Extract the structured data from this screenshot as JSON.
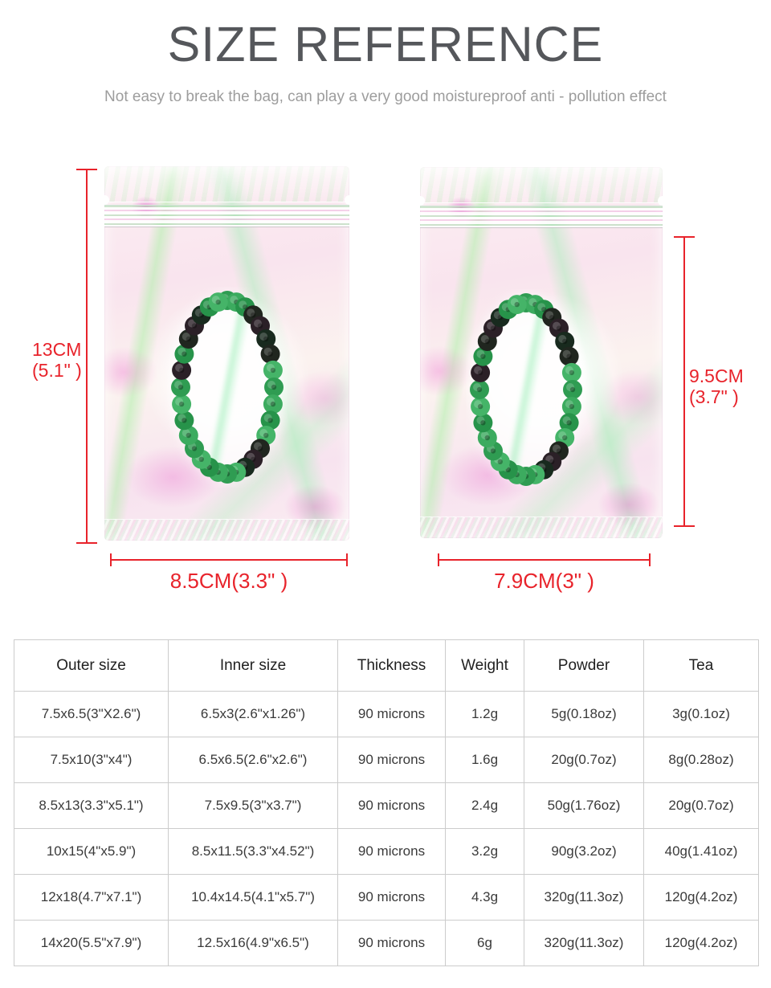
{
  "header": {
    "title": "SIZE REFERENCE",
    "subtitle": "Not easy to break the bag, can play a very good moistureproof anti - pollution effect"
  },
  "measurements": {
    "left_bag": {
      "height": "13CM",
      "height_inch": "(5.1\" )",
      "width": "8.5CM(3.3\" )"
    },
    "right_bag": {
      "height": "9.5CM",
      "height_inch": "(3.7\" )",
      "width": "7.9CM(3\" )"
    }
  },
  "table": {
    "columns": [
      "Outer size",
      "Inner size",
      "Thickness",
      "Weight",
      "Powder",
      "Tea"
    ],
    "rows": [
      [
        "7.5x6.5(3\"X2.6\")",
        "6.5x3(2.6\"x1.26\")",
        "90 microns",
        "1.2g",
        "5g(0.18oz)",
        "3g(0.1oz)"
      ],
      [
        "7.5x10(3\"x4\")",
        "6.5x6.5(2.6\"x2.6\")",
        "90 microns",
        "1.6g",
        "20g(0.7oz)",
        "8g(0.28oz)"
      ],
      [
        "8.5x13(3.3\"x5.1\")",
        "7.5x9.5(3\"x3.7\")",
        "90 microns",
        "2.4g",
        "50g(1.76oz)",
        "20g(0.7oz)"
      ],
      [
        "10x15(4\"x5.9\")",
        "8.5x11.5(3.3\"x4.52\")",
        "90 microns",
        "3.2g",
        "90g(3.2oz)",
        "40g(1.41oz)"
      ],
      [
        "12x18(4.7\"x7.1\")",
        "10.4x14.5(4.1\"x5.7\")",
        "90 microns",
        "4.3g",
        "320g(11.3oz)",
        "120g(4.2oz)"
      ],
      [
        "14x20(5.5\"x7.9\")",
        "12.5x16(4.9\"x6.5\")",
        "90 microns",
        "6g",
        "320g(11.3oz)",
        "120g(4.2oz)"
      ]
    ]
  },
  "colors": {
    "accent_red": "#e8232b",
    "title_gray": "#55575b",
    "subtitle_gray": "#9d9d9d",
    "table_border": "#cccccc",
    "table_text": "#3a3a3a",
    "bag_pink": "#f9e4ee",
    "bag_green_sheen": "#aef0a8",
    "bead_green": "#2f9c52",
    "bead_dark": "#20261f"
  }
}
